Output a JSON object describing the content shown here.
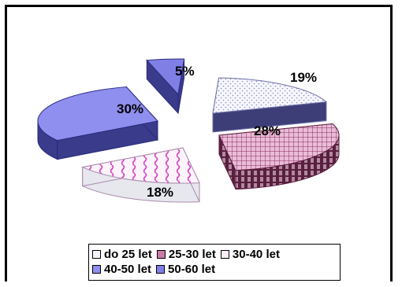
{
  "chart_data": {
    "type": "pie",
    "categories": [
      "do 25 let",
      "25-30 let",
      "30-40 let",
      "40-50 let",
      "50-60 let"
    ],
    "values": [
      19,
      28,
      18,
      30,
      5
    ],
    "labels": [
      "19%",
      "28%",
      "18%",
      "30%",
      "5%"
    ],
    "colors": [
      "#f4f4ff",
      "#c97aa8",
      "#fbeef8",
      "#8f8ff0",
      "#7f7fe6"
    ],
    "legend_position": "bottom"
  }
}
